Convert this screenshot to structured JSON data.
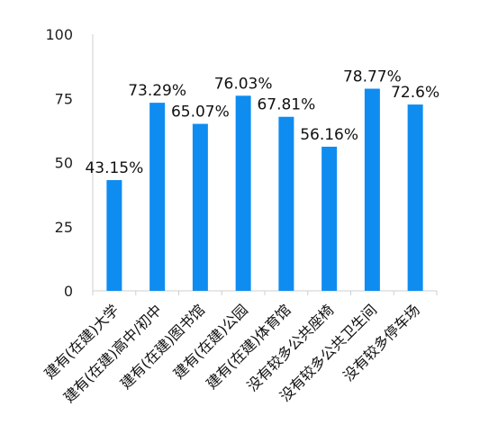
{
  "chart_data": {
    "type": "bar",
    "categories": [
      "建有(在建)大学",
      "建有(在建)高中/初中",
      "建有(在建)图书馆",
      "建有(在建)公园",
      "建有(在建)体育馆",
      "没有较多公共座椅",
      "没有较多公共卫生间",
      "没有较多停车场"
    ],
    "values": [
      43.15,
      73.29,
      65.07,
      76.03,
      67.81,
      56.16,
      78.77,
      72.6
    ],
    "data_labels": [
      "43.15%",
      "73.29%",
      "65.07%",
      "76.03%",
      "67.81%",
      "56.16%",
      "78.77%",
      "72.6%"
    ],
    "y_ticks": [
      0,
      25,
      50,
      75,
      100
    ],
    "ylim": [
      0,
      100
    ],
    "grid": false,
    "legend": "none",
    "bar_color": "#0F8CF0"
  }
}
